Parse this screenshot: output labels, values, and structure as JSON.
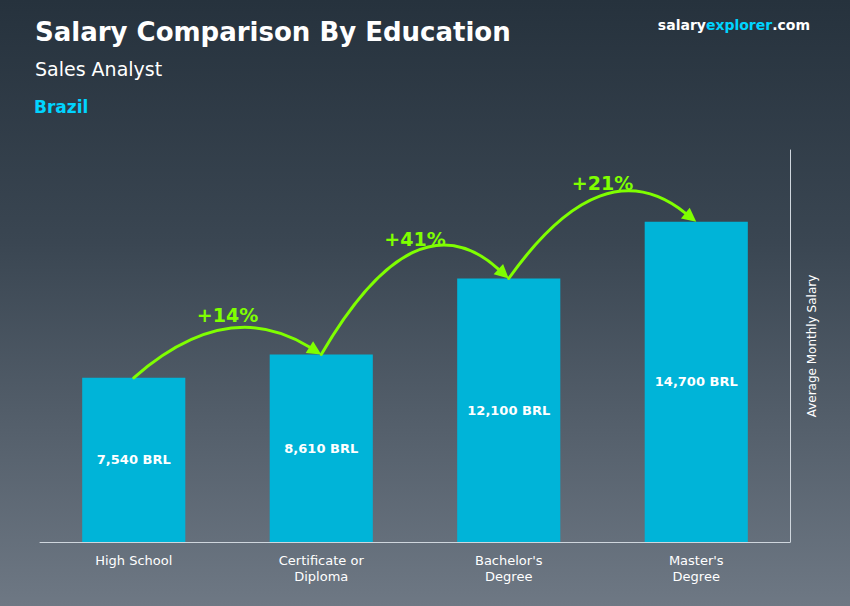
{
  "chart_data": {
    "type": "bar",
    "title": "Salary Comparison By Education",
    "subtitle": "Sales Analyst",
    "ylabel": "Average Monthly Salary",
    "categories": [
      "High School",
      "Certificate or\nDiploma",
      "Bachelor's\nDegree",
      "Master's\nDegree"
    ],
    "values": [
      7540,
      8610,
      12100,
      14700
    ],
    "value_labels": [
      "7,540 BRL",
      "8,610 BRL",
      "12,100 BRL",
      "14,700 BRL"
    ],
    "data_labels": true,
    "color": "#00b4d8",
    "ylim": [
      0,
      18000
    ],
    "tick_labels": "x",
    "grid": false,
    "annotations": [
      {
        "text": "Brazil",
        "color": "#00d4ff"
      },
      {
        "text": [
          "salary",
          "explorer",
          ".com"
        ],
        "colors": [
          "#ffffff",
          "#00d4ff",
          "#ffffff"
        ]
      },
      {
        "text": "+14%",
        "from": "High School",
        "to": "Certificate or\nDiploma",
        "color": "#7fff00"
      },
      {
        "text": "+41%",
        "from": "Certificate or\nDiploma",
        "to": "Bachelor's\nDegree",
        "color": "#7fff00"
      },
      {
        "text": "+21%",
        "from": "Bachelor's\nDegree",
        "to": "Master's\nDegree",
        "color": "#7fff00"
      }
    ]
  }
}
